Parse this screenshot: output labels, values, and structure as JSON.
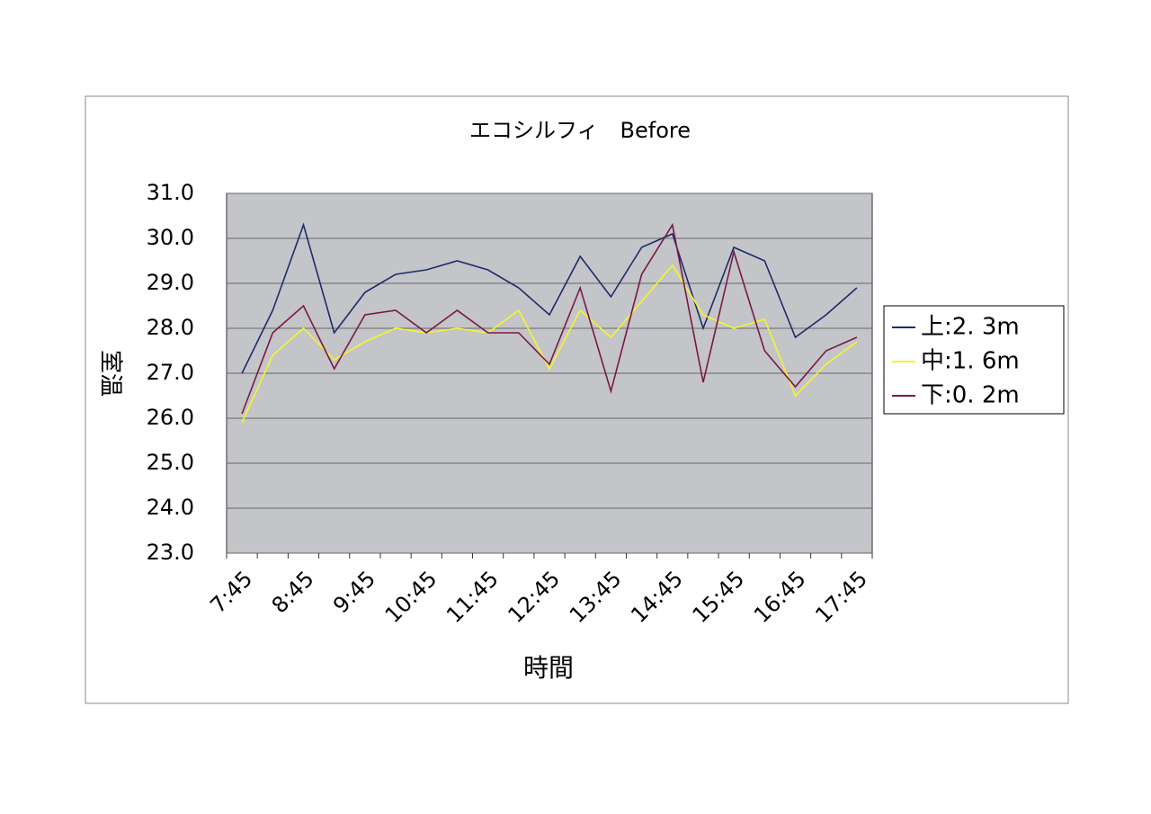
{
  "chart_data": {
    "type": "line",
    "title": "エコシルフィ　Before",
    "x_label": "時間",
    "y_label": "室温",
    "categories": [
      "7:45",
      null,
      "8:45",
      null,
      "9:45",
      null,
      "10:45",
      null,
      "11:45",
      null,
      "12:45",
      null,
      "13:45",
      null,
      "14:45",
      null,
      "15:45",
      null,
      "16:45",
      null,
      "17:45"
    ],
    "series": [
      {
        "name": "上:2. 3m",
        "color": "#1f2a6b",
        "values": [
          27.0,
          28.4,
          30.3,
          27.9,
          28.8,
          29.2,
          29.3,
          29.5,
          29.3,
          28.9,
          28.3,
          29.6,
          28.7,
          29.8,
          30.1,
          28.0,
          29.8,
          29.5,
          27.8,
          28.3,
          28.9
        ]
      },
      {
        "name": "中:1. 6m",
        "color": "#f5f52a",
        "values": [
          25.9,
          27.4,
          28.0,
          27.3,
          27.7,
          28.0,
          27.9,
          28.0,
          27.9,
          28.4,
          27.1,
          28.4,
          27.8,
          28.6,
          29.4,
          28.3,
          28.0,
          28.2,
          26.5,
          27.2,
          27.7
        ]
      },
      {
        "name": "下:0. 2m",
        "color": "#7a1846",
        "values": [
          26.1,
          27.9,
          28.5,
          27.1,
          28.3,
          28.4,
          27.9,
          28.4,
          27.9,
          27.9,
          27.2,
          28.9,
          26.6,
          29.2,
          30.3,
          26.8,
          29.7,
          27.5,
          26.7,
          27.5,
          27.8
        ]
      }
    ],
    "ylim": [
      23,
      31
    ],
    "yticks": [
      {
        "value": 23,
        "label": "23.0"
      },
      {
        "value": 24,
        "label": "24.0"
      },
      {
        "value": 25,
        "label": "25.0"
      },
      {
        "value": 26,
        "label": "26.0"
      },
      {
        "value": 27,
        "label": "27.0"
      },
      {
        "value": 28,
        "label": "28.0"
      },
      {
        "value": 29,
        "label": "29.0"
      },
      {
        "value": 30,
        "label": "30.0"
      },
      {
        "value": 31,
        "label": "31.0"
      }
    ],
    "grid": true,
    "legend": "right"
  }
}
